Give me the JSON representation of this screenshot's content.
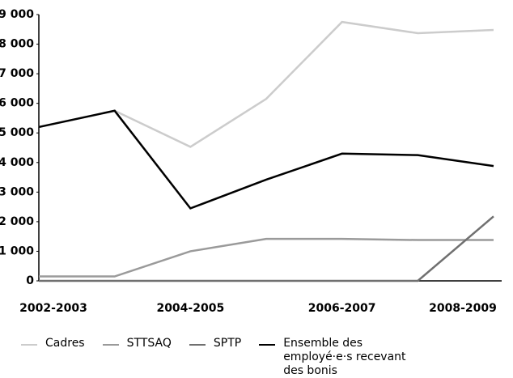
{
  "chart_data": {
    "type": "line",
    "categories": [
      "2002-2003",
      null,
      "2004-2005",
      null,
      "2006-2007",
      null,
      "2008-2009"
    ],
    "series": [
      {
        "name": "Cadres",
        "color": "#cccccc",
        "values": [
          5200,
          5750,
          4530,
          6150,
          8750,
          8370,
          8480
        ]
      },
      {
        "name": "STTSAQ",
        "color": "#9a9a9a",
        "values": [
          150,
          150,
          1000,
          1420,
          1420,
          1380,
          1380
        ]
      },
      {
        "name": "SPTP",
        "color": "#707070",
        "values": [
          0,
          0,
          0,
          0,
          0,
          0,
          2180
        ]
      },
      {
        "name": "Ensemble des employé·e·s recevant des bonis",
        "color": "#000000",
        "values": [
          5200,
          5750,
          2450,
          3420,
          4300,
          4250,
          3880
        ]
      }
    ],
    "ylim": [
      0,
      9000
    ],
    "yticks": [
      0,
      {
        "value": 1000,
        "label": "1 000"
      },
      {
        "value": 2000,
        "label": "2 000"
      },
      {
        "value": 3000,
        "label": "3 000"
      },
      {
        "value": 4000,
        "label": "4 000"
      },
      {
        "value": 5000,
        "label": "5 000"
      },
      {
        "value": 6000,
        "label": "6 000"
      },
      {
        "value": 7000,
        "label": "7 000"
      },
      {
        "value": 8000,
        "label": "8 000"
      },
      {
        "value": 9000,
        "label": "9 000"
      }
    ],
    "grid": false
  }
}
